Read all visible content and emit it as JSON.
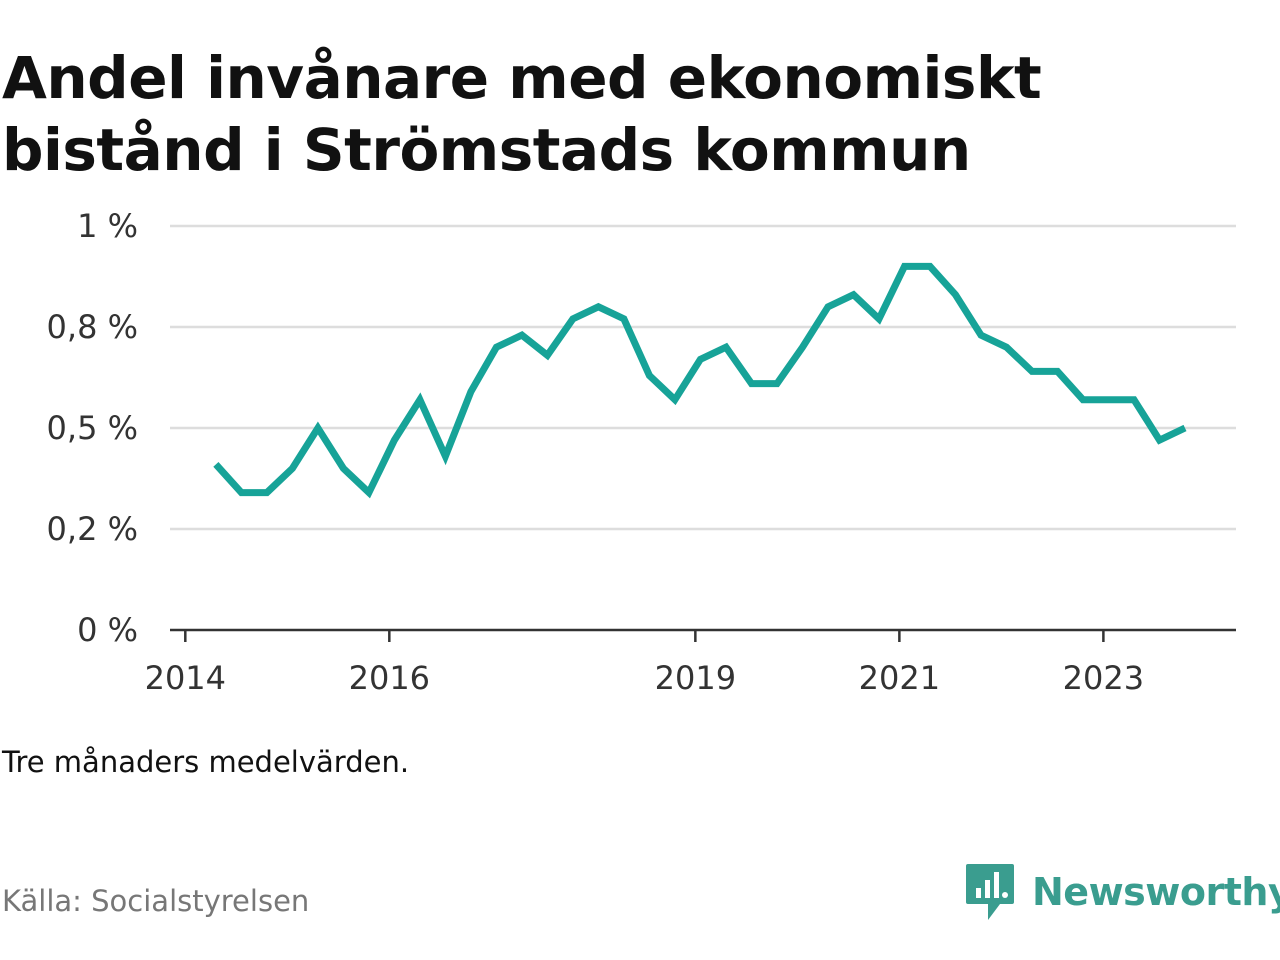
{
  "title": "Andel invånare med ekonomiskt bistånd i Strömstads kommun",
  "note": "Tre månaders medelvärden.",
  "source": "Källa: Socialstyrelsen",
  "brand": {
    "name": "Newsworthy",
    "icon": "newsworthy-logo-icon",
    "color": "#3a9d8f"
  },
  "colors": {
    "line": "#17a398",
    "grid": "#dddddd",
    "axis": "#333333"
  },
  "chart_data": {
    "type": "line",
    "title": "Andel invånare med ekonomiskt bistånd i Strömstads kommun",
    "xlabel": "",
    "ylabel": "",
    "y_ticks": [
      {
        "value": 0,
        "label": "0 %"
      },
      {
        "value": 0.25,
        "label": "0,2 %"
      },
      {
        "value": 0.5,
        "label": "0,5 %"
      },
      {
        "value": 0.75,
        "label": "0,8 %"
      },
      {
        "value": 1.0,
        "label": "1 %"
      }
    ],
    "x_ticks": [
      {
        "value": 2014.0,
        "label": "2014"
      },
      {
        "value": 2016.0,
        "label": "2016"
      },
      {
        "value": 2019.0,
        "label": "2019"
      },
      {
        "value": 2021.0,
        "label": "2021"
      },
      {
        "value": 2023.0,
        "label": "2023"
      }
    ],
    "xlim": [
      2013.85,
      2024.3
    ],
    "ylim": [
      0,
      1.0
    ],
    "grid": true,
    "series": [
      {
        "x": [
          2014.3,
          2014.55,
          2014.8,
          2015.05,
          2015.3,
          2015.55,
          2015.8,
          2016.05,
          2016.3,
          2016.55,
          2016.8,
          2017.05,
          2017.3,
          2017.55,
          2017.8,
          2018.05,
          2018.3,
          2018.55,
          2018.8,
          2019.05,
          2019.3,
          2019.55,
          2019.8,
          2020.05,
          2020.3,
          2020.55,
          2020.8,
          2021.05,
          2021.3,
          2021.55,
          2021.8,
          2022.05,
          2022.3,
          2022.55,
          2022.8,
          2023.05,
          2023.3,
          2023.55,
          2023.8
        ],
        "values": [
          0.41,
          0.34,
          0.34,
          0.4,
          0.5,
          0.4,
          0.34,
          0.47,
          0.57,
          0.43,
          0.59,
          0.7,
          0.73,
          0.68,
          0.77,
          0.8,
          0.77,
          0.63,
          0.57,
          0.67,
          0.7,
          0.61,
          0.61,
          0.7,
          0.8,
          0.83,
          0.77,
          0.9,
          0.9,
          0.83,
          0.73,
          0.7,
          0.64,
          0.64,
          0.57,
          0.57,
          0.57,
          0.47,
          0.5
        ]
      }
    ]
  }
}
